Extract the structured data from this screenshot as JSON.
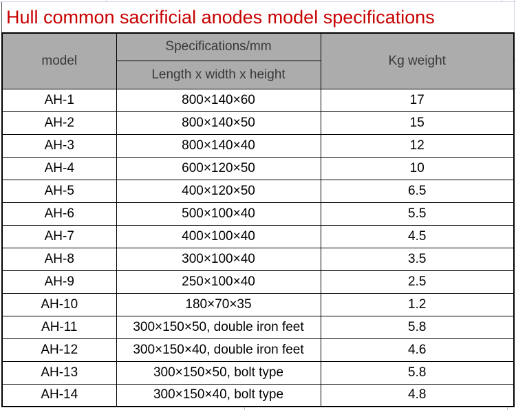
{
  "page": {
    "title": "Hull common sacrificial anodes model specifications"
  },
  "table": {
    "header": {
      "model": "model",
      "spec_group": "Specifications/mm",
      "spec_detail": "Length x width x height",
      "weight": "Kg weight"
    },
    "rows": [
      {
        "model": "AH-1",
        "spec": "800×140×60",
        "weight": "17"
      },
      {
        "model": "AH-2",
        "spec": "800×140×50",
        "weight": "15"
      },
      {
        "model": "AH-3",
        "spec": "800×140×40",
        "weight": "12"
      },
      {
        "model": "AH-4",
        "spec": "600×120×50",
        "weight": "10"
      },
      {
        "model": "AH-5",
        "spec": "400×120×50",
        "weight": "6.5"
      },
      {
        "model": "AH-6",
        "spec": "500×100×40",
        "weight": "5.5"
      },
      {
        "model": "AH-7",
        "spec": "400×100×40",
        "weight": "4.5"
      },
      {
        "model": "AH-8",
        "spec": "300×100×40",
        "weight": "3.5"
      },
      {
        "model": "AH-9",
        "spec": "250×100×40",
        "weight": "2.5"
      },
      {
        "model": "AH-10",
        "spec": "180×70×35",
        "weight": "1.2"
      },
      {
        "model": "AH-11",
        "spec": "300×150×50, double iron feet",
        "weight": "5.8"
      },
      {
        "model": "AH-12",
        "spec": "300×150×40, double iron feet",
        "weight": "4.6"
      },
      {
        "model": "AH-13",
        "spec": "300×150×50, bolt type",
        "weight": "5.8"
      },
      {
        "model": "AH-14",
        "spec": "300×150×40, bolt type",
        "weight": "4.8"
      }
    ]
  },
  "colors": {
    "title_text": "#c80000",
    "header_bg": "#acacac",
    "header_text": "#383838",
    "body_text": "#000000",
    "border": "#000000",
    "gridline": "#cdd3e2"
  }
}
